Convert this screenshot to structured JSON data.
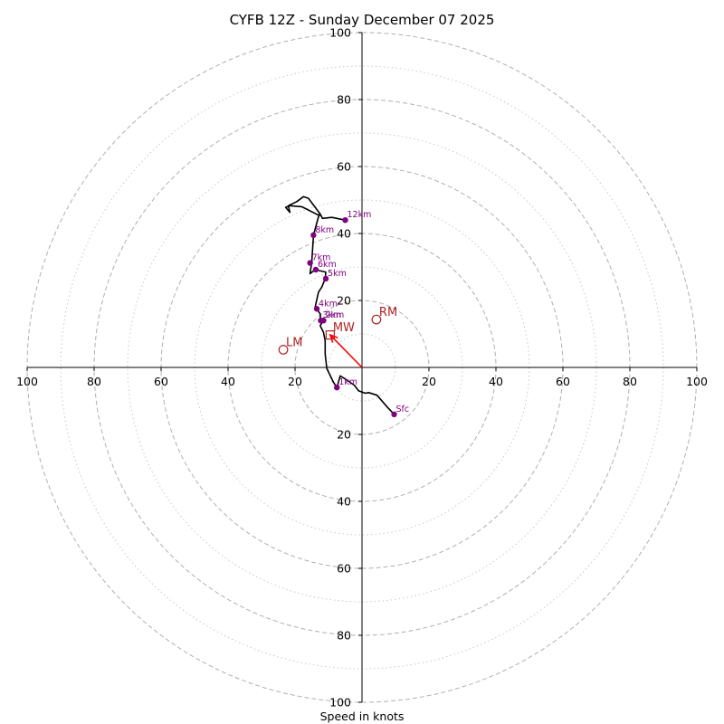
{
  "chart_data": {
    "type": "hodograph",
    "title": "CYFB 12Z - Sunday December 07 2025",
    "xlabel": "Speed in knots",
    "units": "knots",
    "range": [
      -100,
      100
    ],
    "rings_major": [
      20,
      40,
      60,
      80,
      100
    ],
    "rings_minor": [
      10,
      30,
      50,
      70,
      90
    ],
    "x_ticks": [
      {
        "value": -100,
        "label": "100"
      },
      {
        "value": -80,
        "label": "80"
      },
      {
        "value": -60,
        "label": "60"
      },
      {
        "value": -40,
        "label": "40"
      },
      {
        "value": -20,
        "label": "20"
      },
      {
        "value": 20,
        "label": "20"
      },
      {
        "value": 40,
        "label": "40"
      },
      {
        "value": 60,
        "label": "60"
      },
      {
        "value": 80,
        "label": "80"
      },
      {
        "value": 100,
        "label": "100"
      }
    ],
    "y_ticks": [
      {
        "value": 100,
        "label": "100"
      },
      {
        "value": 80,
        "label": "80"
      },
      {
        "value": 60,
        "label": "60"
      },
      {
        "value": 40,
        "label": "40"
      },
      {
        "value": 20,
        "label": "20"
      },
      {
        "value": -20,
        "label": "20"
      },
      {
        "value": -40,
        "label": "40"
      },
      {
        "value": -60,
        "label": "60"
      },
      {
        "value": -80,
        "label": "80"
      },
      {
        "value": -100,
        "label": "100"
      }
    ],
    "trace": [
      [
        9.6,
        -14.0
      ],
      [
        7.5,
        -11.8
      ],
      [
        4.5,
        -8.3
      ],
      [
        2.0,
        -7.5
      ],
      [
        1.0,
        -7.7
      ],
      [
        -1.0,
        -7.0
      ],
      [
        -2.3,
        -5.3
      ],
      [
        -4.5,
        -3.8
      ],
      [
        -6.5,
        -2.5
      ],
      [
        -7.5,
        -6.0
      ],
      [
        -8.5,
        -4.5
      ],
      [
        -10.5,
        -0.3
      ],
      [
        -11.0,
        4.0
      ],
      [
        -11.0,
        8.0
      ],
      [
        -11.5,
        10.5
      ],
      [
        -12.5,
        12.5
      ],
      [
        -11.5,
        14.0
      ],
      [
        -12.3,
        14.0
      ],
      [
        -12.5,
        16.0
      ],
      [
        -13.5,
        17.5
      ],
      [
        -14.0,
        18.0
      ],
      [
        -13.0,
        22.5
      ],
      [
        -12.0,
        24.0
      ],
      [
        -11.0,
        26.5
      ],
      [
        -10.8,
        28.5
      ],
      [
        -14.0,
        29.2
      ],
      [
        -15.5,
        28.0
      ],
      [
        -15.0,
        31.5
      ],
      [
        -14.5,
        39.5
      ],
      [
        -13.0,
        45.0
      ],
      [
        -12.5,
        45.8
      ],
      [
        -13.0,
        45.5
      ],
      [
        -18.0,
        48.0
      ],
      [
        -21.5,
        48.3
      ],
      [
        -22.8,
        47.8
      ],
      [
        -21.5,
        46.3
      ],
      [
        -22.0,
        48.3
      ],
      [
        -19.5,
        49.5
      ],
      [
        -17.5,
        51.0
      ],
      [
        -16.0,
        50.5
      ],
      [
        -12.5,
        45.8
      ],
      [
        -11.8,
        44.5
      ],
      [
        -9.0,
        44.8
      ],
      [
        -5.0,
        44.0
      ]
    ],
    "height_labels": [
      {
        "label": "Sfc",
        "u": 9.6,
        "v": -14.0
      },
      {
        "label": "1km",
        "u": -7.5,
        "v": -6.0
      },
      {
        "label": "2km",
        "u": -11.5,
        "v": 14.0
      },
      {
        "label": "3km",
        "u": -12.3,
        "v": 14.0
      },
      {
        "label": "4km",
        "u": -13.5,
        "v": 17.5
      },
      {
        "label": "5km",
        "u": -10.8,
        "v": 26.5
      },
      {
        "label": "6km",
        "u": -13.8,
        "v": 29.2
      },
      {
        "label": "7km",
        "u": -15.5,
        "v": 31.2
      },
      {
        "label": "8km",
        "u": -14.5,
        "v": 39.5
      },
      {
        "label": "12km",
        "u": -5.0,
        "v": 44.0
      }
    ],
    "storm_motion": [
      {
        "label": "RM",
        "u": 4.3,
        "v": 14.3
      },
      {
        "label": "LM",
        "u": -23.5,
        "v": 5.3
      },
      {
        "label": "MW",
        "u": -9.5,
        "v": 9.7
      }
    ],
    "shear_vector": {
      "from": [
        0,
        0
      ],
      "to": [
        -9.5,
        9.7
      ]
    },
    "colors": {
      "trace": "#000000",
      "height_point": "#800080",
      "height_label": "#800080",
      "storm_motion": "#b22222",
      "shear_vector": "#ff0000",
      "ring_major": "#b0b0b0",
      "ring_minor": "#c8c8c8",
      "axis": "#000000"
    }
  }
}
